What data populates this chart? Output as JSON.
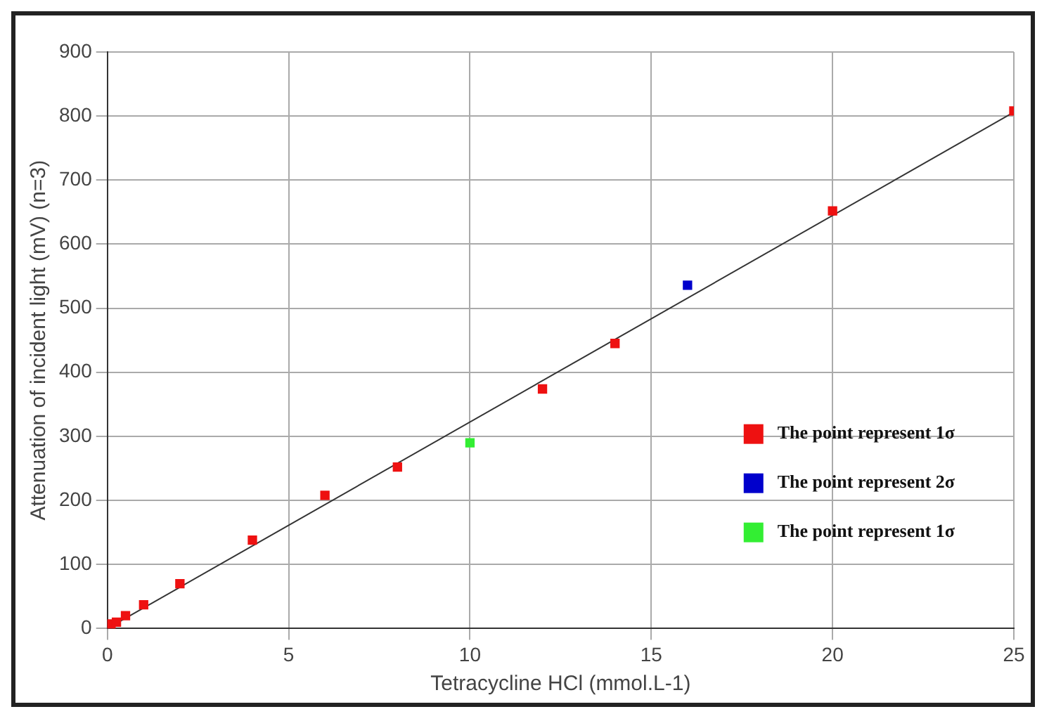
{
  "chart_data": {
    "type": "scatter",
    "xlabel": "Tetracycline HCl (mmol.L-1)",
    "ylabel": "Attenuation of incident light (mV) (n=3)",
    "xlim": [
      0,
      25
    ],
    "xticks": [
      0,
      5,
      10,
      15,
      20,
      25
    ],
    "ylim": [
      0,
      900
    ],
    "yticks": [
      0,
      100,
      200,
      300,
      400,
      500,
      600,
      700,
      800,
      900
    ],
    "grid": true,
    "legend": "right",
    "marker": "square",
    "series": [
      {
        "name": "The point represent 1σ",
        "color": "#ee1111",
        "x": [
          0.1,
          0.25,
          0.5,
          1,
          2,
          4,
          6,
          8,
          12,
          14,
          20,
          25
        ],
        "values": [
          7,
          10,
          20,
          37,
          70,
          138,
          208,
          252,
          374,
          445,
          652,
          808
        ]
      },
      {
        "name": "The point represent 2σ",
        "color": "#0000cc",
        "x": [
          16
        ],
        "values": [
          536
        ]
      },
      {
        "name": "The point represent 1σ",
        "color": "#33ee33",
        "x": [
          10
        ],
        "values": [
          290
        ]
      },
      {
        "type": "line",
        "color": "#333333",
        "x": [
          0,
          25
        ],
        "values": [
          0,
          806
        ],
        "marker": "none"
      }
    ]
  }
}
